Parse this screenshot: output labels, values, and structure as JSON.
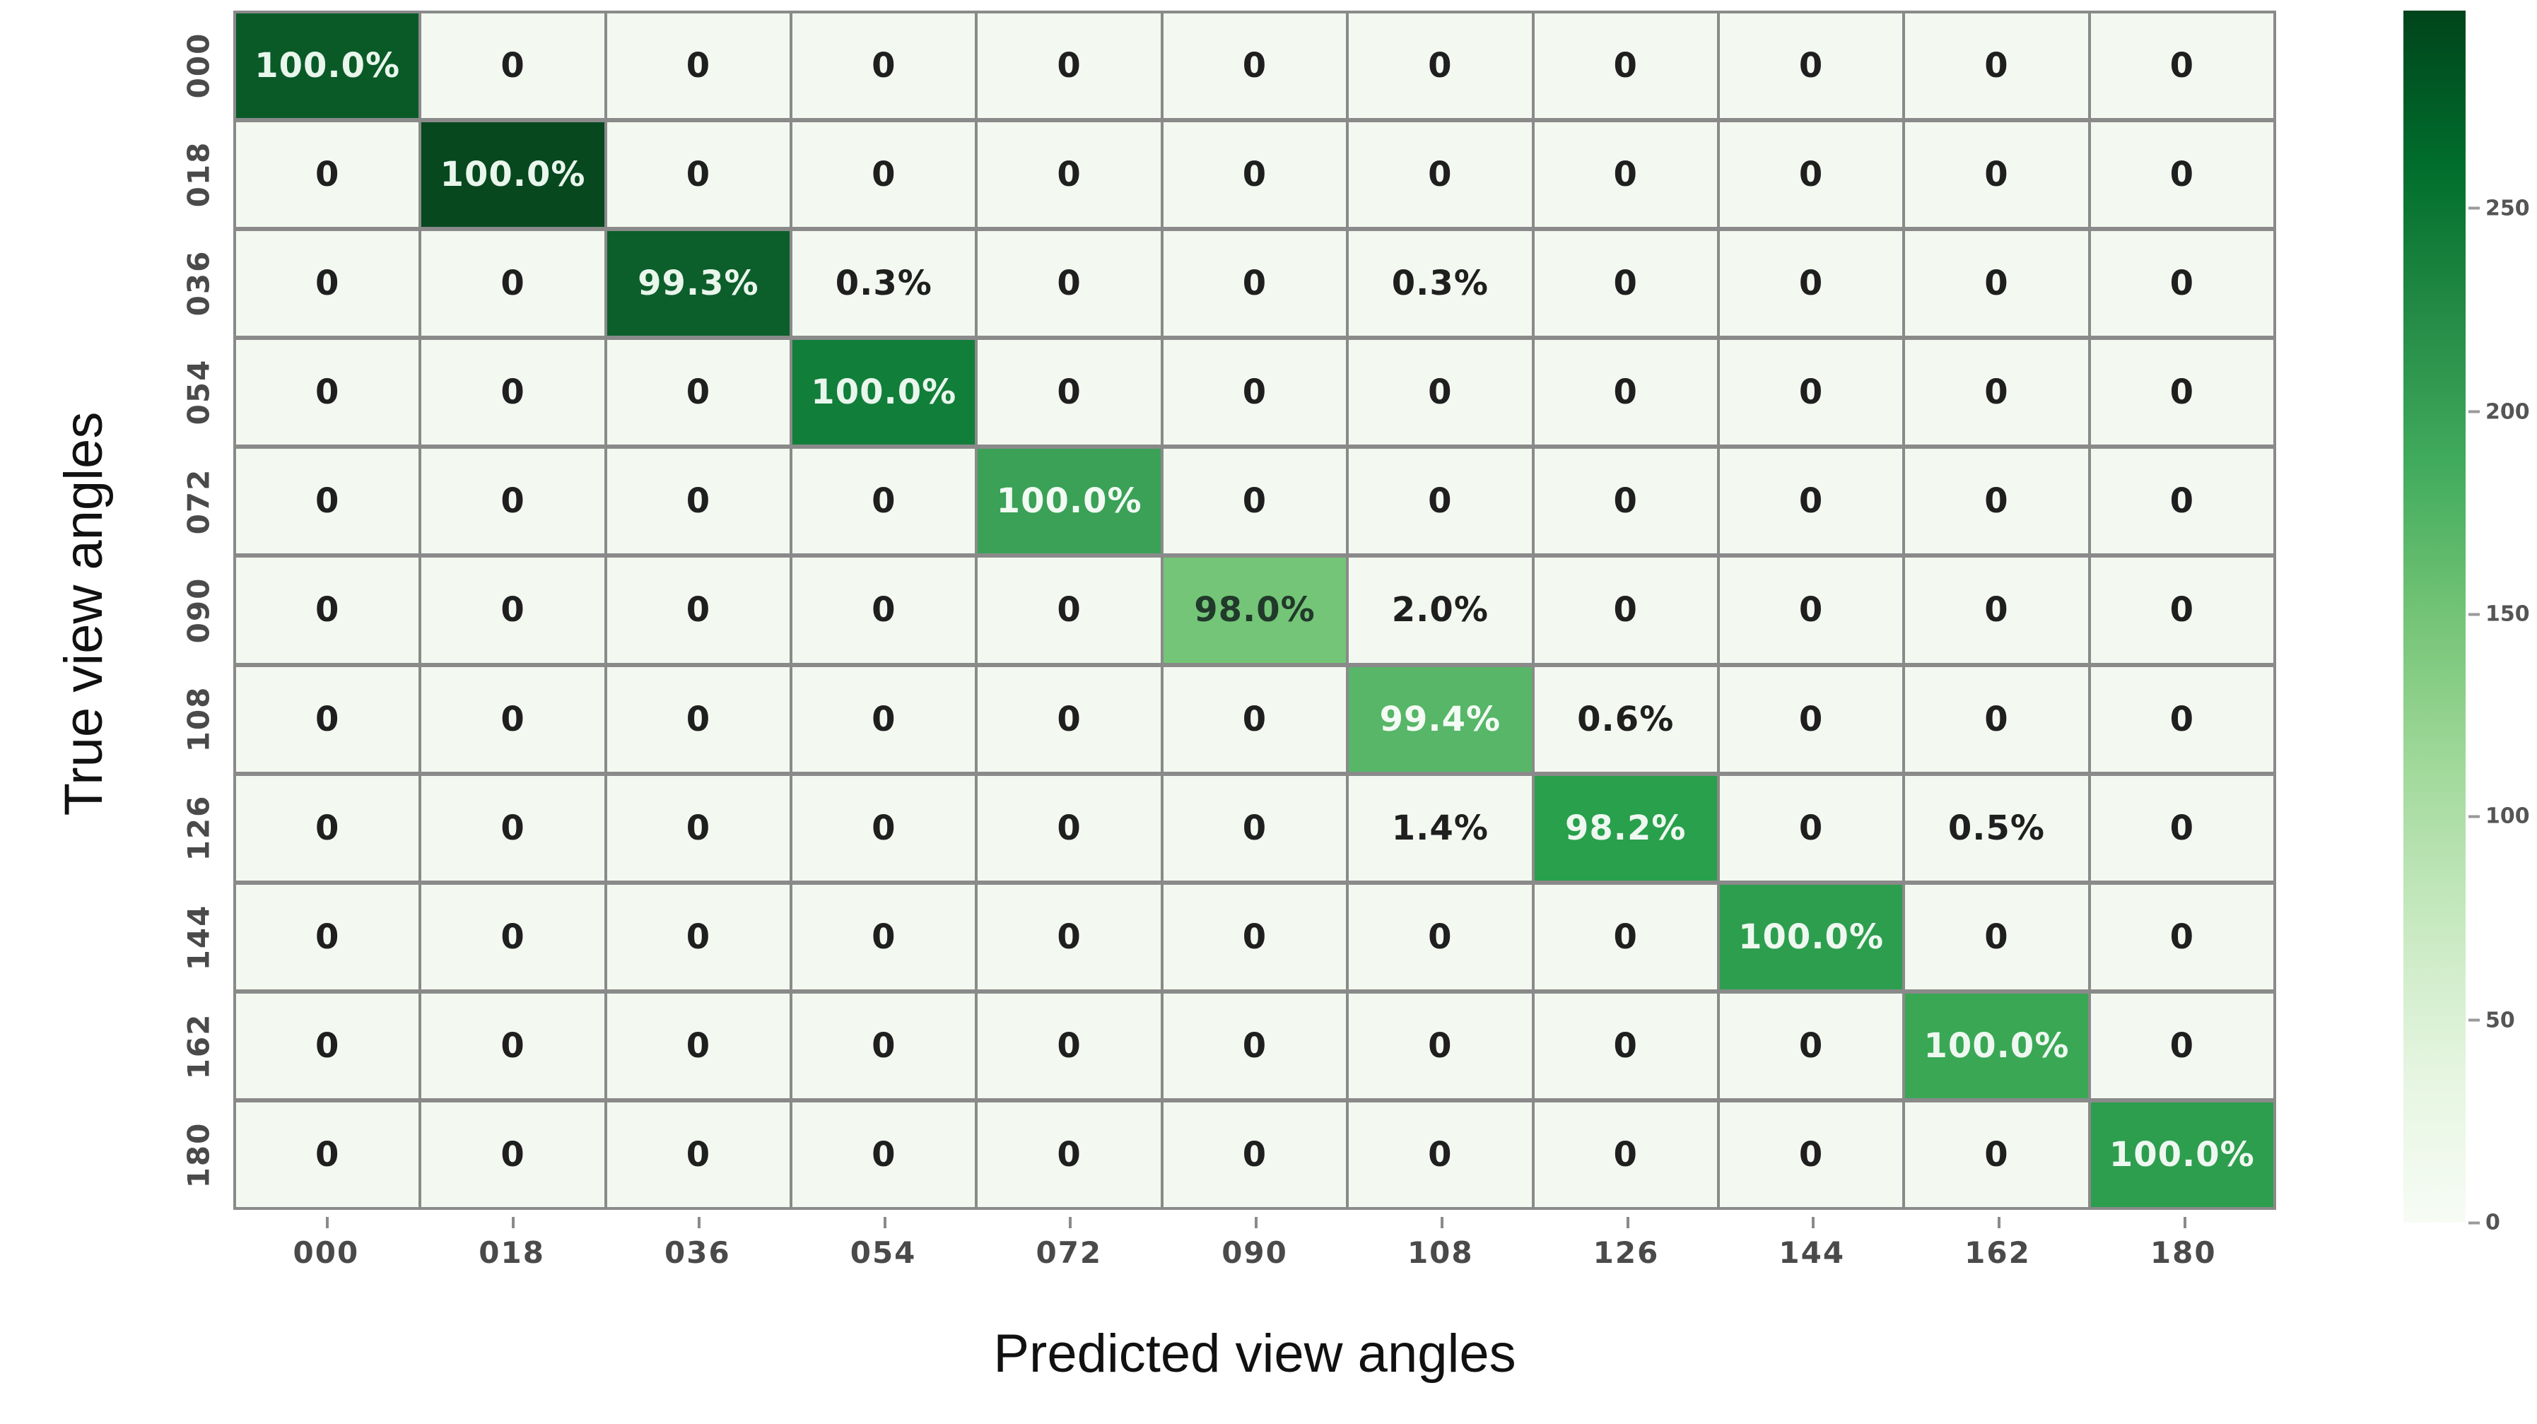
{
  "chart_data": {
    "type": "heatmap",
    "xlabel": "Predicted view angles",
    "ylabel": "True view angles",
    "categories": [
      "000",
      "018",
      "036",
      "054",
      "072",
      "090",
      "108",
      "126",
      "144",
      "162",
      "180"
    ],
    "palette": {
      "off_diagonal_bg": "#f3f9f0",
      "off_diagonal_fg": "#1f1f1f",
      "grid_line": "#8a8a8a",
      "colormap": "Greens"
    },
    "rows": [
      {
        "label": "000",
        "cells": [
          "100.0%",
          "0",
          "0",
          "0",
          "0",
          "0",
          "0",
          "0",
          "0",
          "0",
          "0"
        ],
        "diag_index": 0,
        "diag_bg": "#0a5a28",
        "diag_fg": "#e9f6ec"
      },
      {
        "label": "018",
        "cells": [
          "0",
          "100.0%",
          "0",
          "0",
          "0",
          "0",
          "0",
          "0",
          "0",
          "0",
          "0"
        ],
        "diag_index": 1,
        "diag_bg": "#07481f",
        "diag_fg": "#e9f6ec"
      },
      {
        "label": "036",
        "cells": [
          "0",
          "0",
          "99.3%",
          "0.3%",
          "0",
          "0",
          "0.3%",
          "0",
          "0",
          "0",
          "0"
        ],
        "diag_index": 2,
        "diag_bg": "#0c5e2b",
        "diag_fg": "#e9f6ec"
      },
      {
        "label": "054",
        "cells": [
          "0",
          "0",
          "0",
          "100.0%",
          "0",
          "0",
          "0",
          "0",
          "0",
          "0",
          "0"
        ],
        "diag_index": 3,
        "diag_bg": "#117e3a",
        "diag_fg": "#e9f6ec"
      },
      {
        "label": "072",
        "cells": [
          "0",
          "0",
          "0",
          "0",
          "100.0%",
          "0",
          "0",
          "0",
          "0",
          "0",
          "0"
        ],
        "diag_index": 4,
        "diag_bg": "#3aa156",
        "diag_fg": "#f2faf3"
      },
      {
        "label": "090",
        "cells": [
          "0",
          "0",
          "0",
          "0",
          "0",
          "98.0%",
          "2.0%",
          "0",
          "0",
          "0",
          "0"
        ],
        "diag_index": 5,
        "diag_bg": "#74c578",
        "diag_fg": "#21392a"
      },
      {
        "label": "108",
        "cells": [
          "0",
          "0",
          "0",
          "0",
          "0",
          "0",
          "99.4%",
          "0.6%",
          "0",
          "0",
          "0"
        ],
        "diag_index": 6,
        "diag_bg": "#57b668",
        "diag_fg": "#f4fbf4"
      },
      {
        "label": "126",
        "cells": [
          "0",
          "0",
          "0",
          "0",
          "0",
          "0",
          "1.4%",
          "98.2%",
          "0",
          "0.5%",
          "0"
        ],
        "diag_index": 7,
        "diag_bg": "#28a04c",
        "diag_fg": "#eef8f0"
      },
      {
        "label": "144",
        "cells": [
          "0",
          "0",
          "0",
          "0",
          "0",
          "0",
          "0",
          "0",
          "100.0%",
          "0",
          "0"
        ],
        "diag_index": 8,
        "diag_bg": "#2d9e4e",
        "diag_fg": "#eef8f0"
      },
      {
        "label": "162",
        "cells": [
          "0",
          "0",
          "0",
          "0",
          "0",
          "0",
          "0",
          "0",
          "0",
          "100.0%",
          "0"
        ],
        "diag_index": 9,
        "diag_bg": "#3aa755",
        "diag_fg": "#eef8f0"
      },
      {
        "label": "180",
        "cells": [
          "0",
          "0",
          "0",
          "0",
          "0",
          "0",
          "0",
          "0",
          "0",
          "0",
          "100.0%"
        ],
        "diag_index": 10,
        "diag_bg": "#2d9e4e",
        "diag_fg": "#eef8f0"
      }
    ],
    "colorbar": {
      "ticks": [
        "250",
        "200",
        "150",
        "100",
        "50",
        "0"
      ],
      "tick_positions_pct": [
        16.3,
        33.1,
        49.8,
        66.5,
        83.3,
        100
      ],
      "vmin": 0,
      "vmax_approx": 300
    },
    "legend_position": "right",
    "grid": true
  }
}
